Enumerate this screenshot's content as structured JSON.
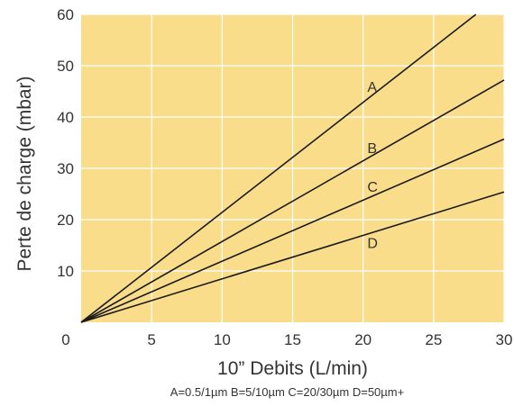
{
  "chart_data": {
    "type": "line",
    "title": "",
    "xlabel": "10” Debits (L/min)",
    "ylabel": "Perte de charge  (mbar)",
    "footnote": "A=0.5/1µm B=5/10µm C=20/30µm D=50µm+",
    "xlim": [
      0,
      30
    ],
    "ylim": [
      0,
      60
    ],
    "x_ticks": [
      5,
      10,
      15,
      20,
      25,
      30
    ],
    "y_ticks": [
      10,
      20,
      30,
      40,
      50,
      60
    ],
    "origin_label": "0",
    "grid": true,
    "background_color": "#f9dd8b",
    "grid_color": "#ffffff",
    "line_color": "#1a1a1a",
    "series": [
      {
        "name": "A",
        "x": [
          0,
          28
        ],
        "y": [
          0,
          60
        ],
        "label_at": [
          20.3,
          46
        ]
      },
      {
        "name": "B",
        "x": [
          0,
          30
        ],
        "y": [
          0,
          47.2
        ],
        "label_at": [
          20.3,
          34
        ]
      },
      {
        "name": "C",
        "x": [
          0,
          30
        ],
        "y": [
          0,
          35.7
        ],
        "label_at": [
          20.3,
          26.5
        ]
      },
      {
        "name": "D",
        "x": [
          0,
          30
        ],
        "y": [
          0,
          25.4
        ],
        "label_at": [
          20.3,
          15.5
        ]
      }
    ]
  }
}
